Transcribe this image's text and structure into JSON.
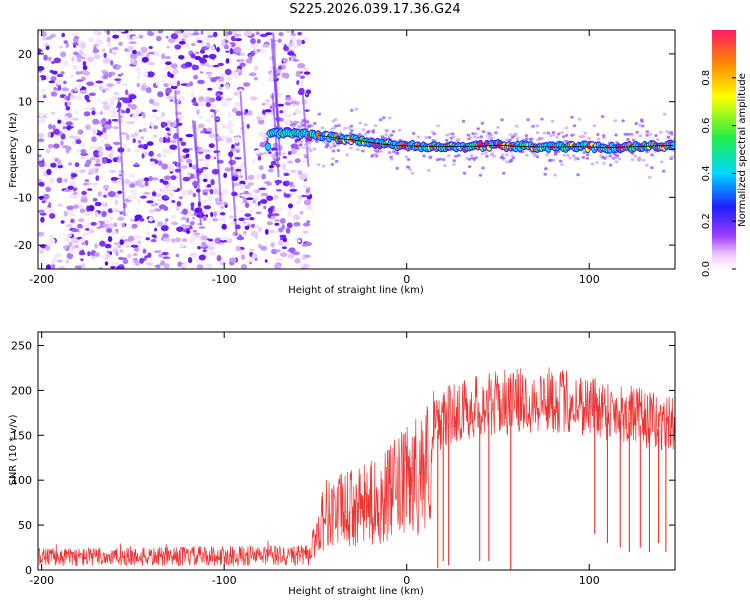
{
  "title": "S225.2026.039.17.36.G24",
  "chart_data": [
    {
      "type": "heatmap",
      "panel": "top",
      "xlabel": "Height of straight line (km)",
      "ylabel": "Frequency (Hz)",
      "xlim": [
        -202,
        147
      ],
      "ylim": [
        -25,
        25
      ],
      "xticks": [
        -200,
        -100,
        0,
        100
      ],
      "xtick_labels": [
        "-200",
        "-100",
        "0",
        "100"
      ],
      "yticks": [
        20,
        10,
        0,
        -10,
        -20
      ],
      "ytick_labels": [
        "20",
        "10",
        "0",
        "-10",
        "-20"
      ],
      "noise_region_x": [
        -202,
        -53
      ],
      "signal_region_x": [
        -80,
        147
      ],
      "signal_track": [
        {
          "x": -75,
          "y": 3.5
        },
        {
          "x": -60,
          "y": 3.2
        },
        {
          "x": -45,
          "y": 2.8
        },
        {
          "x": -35,
          "y": 2.2
        },
        {
          "x": -25,
          "y": 1.8
        },
        {
          "x": -15,
          "y": 1.2
        },
        {
          "x": -5,
          "y": 0.8
        },
        {
          "x": 5,
          "y": 0.7
        },
        {
          "x": 20,
          "y": 0.6
        },
        {
          "x": 35,
          "y": 0.6
        },
        {
          "x": 50,
          "y": 0.9
        },
        {
          "x": 65,
          "y": 0.6
        },
        {
          "x": 80,
          "y": 0.5
        },
        {
          "x": 95,
          "y": 0.6
        },
        {
          "x": 110,
          "y": 0.4
        },
        {
          "x": 125,
          "y": 0.6
        },
        {
          "x": 140,
          "y": 0.8
        },
        {
          "x": 147,
          "y": 0.9
        }
      ],
      "colorbar": {
        "label": "Normalized spectral amplitude",
        "range": [
          0.0,
          1.0
        ],
        "ticks": [
          0.0,
          0.2,
          0.4,
          0.6,
          0.8
        ],
        "tick_labels": [
          "0.0",
          "0.2",
          "0.4",
          "0.6",
          "0.8"
        ]
      }
    },
    {
      "type": "line",
      "panel": "bottom",
      "xlabel": "Height of straight line (km)",
      "ylabel": "SNR (10 * v/v)",
      "xlim": [
        -202,
        147
      ],
      "ylim": [
        0,
        265
      ],
      "xticks": [
        -200,
        -100,
        0,
        100
      ],
      "xtick_labels": [
        "-200",
        "-100",
        "0",
        "100"
      ],
      "yticks": [
        0,
        50,
        100,
        150,
        200,
        250
      ],
      "ytick_labels": [
        "0",
        "50",
        "100",
        "150",
        "200",
        "250"
      ],
      "color": "#ee3333",
      "envelope": [
        {
          "x": -202,
          "y": 25
        },
        {
          "x": -150,
          "y": 25
        },
        {
          "x": -100,
          "y": 27
        },
        {
          "x": -53,
          "y": 28
        },
        {
          "x": -45,
          "y": 90
        },
        {
          "x": -35,
          "y": 95
        },
        {
          "x": -25,
          "y": 100
        },
        {
          "x": -15,
          "y": 110
        },
        {
          "x": -5,
          "y": 130
        },
        {
          "x": 5,
          "y": 150
        },
        {
          "x": 15,
          "y": 180
        },
        {
          "x": 25,
          "y": 195
        },
        {
          "x": 40,
          "y": 205
        },
        {
          "x": 60,
          "y": 210
        },
        {
          "x": 80,
          "y": 212
        },
        {
          "x": 100,
          "y": 205
        },
        {
          "x": 120,
          "y": 195
        },
        {
          "x": 135,
          "y": 185
        },
        {
          "x": 147,
          "y": 180
        }
      ],
      "dropouts": [
        {
          "x": 17,
          "y": 2
        },
        {
          "x": 20,
          "y": 10
        },
        {
          "x": 23,
          "y": 5
        },
        {
          "x": 40,
          "y": 10
        },
        {
          "x": 45,
          "y": 10
        },
        {
          "x": 57,
          "y": 0
        },
        {
          "x": 103,
          "y": 40
        },
        {
          "x": 110,
          "y": 30
        },
        {
          "x": 117,
          "y": 25
        },
        {
          "x": 122,
          "y": 20
        },
        {
          "x": 128,
          "y": 25
        },
        {
          "x": 133,
          "y": 20
        },
        {
          "x": 138,
          "y": 30
        },
        {
          "x": 142,
          "y": 20
        }
      ]
    }
  ]
}
